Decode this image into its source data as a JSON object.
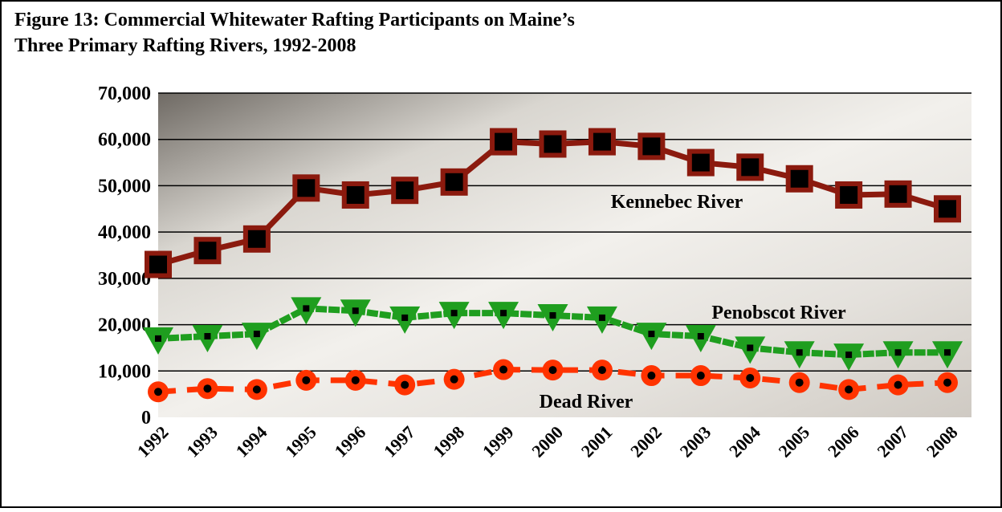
{
  "chart_data": {
    "type": "line",
    "title": [
      "Figure 13: Commercial Whitewater Rafting Participants on Maine’s",
      "Three Primary Rafting Rivers, 1992-2008"
    ],
    "categories": [
      "1992",
      "1993",
      "1994",
      "1995",
      "1996",
      "1997",
      "1998",
      "1999",
      "2000",
      "2001",
      "2002",
      "2003",
      "2004",
      "2005",
      "2006",
      "2007",
      "2008"
    ],
    "series": [
      {
        "name": "Kennebec River",
        "color": "#8b1a0e",
        "marker": "square",
        "line_style": "solid",
        "values": [
          33000,
          36000,
          38500,
          49500,
          48000,
          49000,
          50800,
          59500,
          59000,
          59500,
          58500,
          55000,
          54000,
          51500,
          48000,
          48200,
          45000
        ]
      },
      {
        "name": "Penobscot River",
        "color": "#1f9e1f",
        "marker": "triangle",
        "line_style": "dotted",
        "values": [
          17000,
          17500,
          18000,
          23500,
          23000,
          21500,
          22500,
          22500,
          22000,
          21500,
          18000,
          17500,
          15000,
          14000,
          13500,
          14000,
          14000
        ]
      },
      {
        "name": "Dead River",
        "color": "#ff3300",
        "marker": "circle",
        "line_style": "dashed",
        "values": [
          5500,
          6200,
          6000,
          8000,
          8000,
          7000,
          8200,
          10300,
          10200,
          10200,
          9000,
          9000,
          8500,
          7500,
          6000,
          7000,
          7500
        ]
      }
    ],
    "ylim": [
      0,
      70000
    ],
    "yticks": [
      0,
      {
        "value": 10000,
        "label": "10,000"
      },
      {
        "value": 20000,
        "label": "20,000"
      },
      {
        "value": 30000,
        "label": "30,000"
      },
      {
        "value": 40000,
        "label": "40,000"
      },
      {
        "value": 50000,
        "label": "50,000"
      },
      {
        "value": 60000,
        "label": "60,000"
      },
      {
        "value": 70000,
        "label": "70,000"
      }
    ],
    "grid": true
  }
}
